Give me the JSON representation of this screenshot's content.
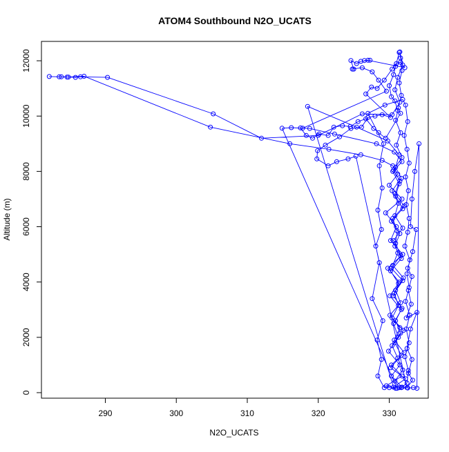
{
  "chart_data": {
    "type": "scatter",
    "title": "ATOM4 Southbound N2O_UCATS",
    "xlabel": "N2O_UCATS",
    "ylabel": "Altitude (m)",
    "xlim": [
      281,
      335.5
    ],
    "ylim": [
      -200,
      12700
    ],
    "xticks": [
      290,
      300,
      310,
      320,
      330
    ],
    "yticks": [
      0,
      2000,
      4000,
      6000,
      8000,
      10000,
      12000
    ],
    "grid": false,
    "legend": "none",
    "marker": "open-circle",
    "connect_points": true,
    "series": [
      {
        "color": "#0000ff",
        "points": [
          [
            331.4,
            180
          ],
          [
            330.8,
            420
          ],
          [
            331.9,
            820
          ],
          [
            331.2,
            1250
          ],
          [
            330.4,
            1700
          ],
          [
            331.6,
            2150
          ],
          [
            330.9,
            2600
          ],
          [
            331.8,
            3050
          ],
          [
            330.6,
            3500
          ],
          [
            331.3,
            3950
          ],
          [
            330.2,
            4400
          ],
          [
            331.7,
            4850
          ],
          [
            330.8,
            5300
          ],
          [
            331.5,
            5750
          ],
          [
            330.3,
            6200
          ],
          [
            331.9,
            6650
          ],
          [
            330.9,
            7100
          ],
          [
            331.4,
            7550
          ],
          [
            330.5,
            8000
          ],
          [
            331.8,
            8350
          ],
          [
            330.7,
            8700
          ],
          [
            328.2,
            9000
          ],
          [
            322.3,
            9350
          ],
          [
            318.8,
            9550
          ],
          [
            316.2,
            9580
          ],
          [
            314.9,
            9560
          ],
          [
            331.1,
            160
          ],
          [
            329.6,
            250
          ],
          [
            331.8,
            600
          ],
          [
            330.3,
            1000
          ],
          [
            332.1,
            1450
          ],
          [
            330.7,
            1900
          ],
          [
            331.5,
            2350
          ],
          [
            330.1,
            2800
          ],
          [
            331.6,
            3250
          ],
          [
            330.9,
            3700
          ],
          [
            332.0,
            4150
          ],
          [
            330.5,
            4600
          ],
          [
            331.2,
            5050
          ],
          [
            330.6,
            5500
          ],
          [
            331.9,
            5950
          ],
          [
            330.8,
            6400
          ],
          [
            331.3,
            6850
          ],
          [
            330.4,
            7300
          ],
          [
            331.7,
            7750
          ],
          [
            330.9,
            8150
          ],
          [
            331.4,
            8600
          ],
          [
            329.8,
            9100
          ],
          [
            325.4,
            9600
          ],
          [
            318.5,
            10350
          ],
          [
            330.6,
            200
          ],
          [
            332.3,
            500
          ],
          [
            330.2,
            900
          ],
          [
            331.7,
            1350
          ],
          [
            330.8,
            1800
          ],
          [
            332.0,
            2250
          ],
          [
            330.4,
            2700
          ],
          [
            331.3,
            3150
          ],
          [
            330.7,
            3600
          ],
          [
            331.9,
            4050
          ],
          [
            330.3,
            4500
          ],
          [
            331.6,
            4950
          ],
          [
            330.9,
            5400
          ],
          [
            331.1,
            5850
          ],
          [
            330.5,
            6300
          ],
          [
            332.1,
            6750
          ],
          [
            330.8,
            7200
          ],
          [
            331.5,
            7650
          ],
          [
            330.6,
            8050
          ],
          [
            331.8,
            8500
          ],
          [
            331.0,
            8950
          ],
          [
            331.6,
            9400
          ],
          [
            330.9,
            9850
          ],
          [
            331.3,
            10300
          ],
          [
            331.7,
            10750
          ],
          [
            331.4,
            11200
          ],
          [
            331.8,
            11650
          ],
          [
            331.6,
            12100
          ],
          [
            331.5,
            12320
          ],
          [
            331.9,
            11850
          ],
          [
            331.2,
            11400
          ],
          [
            330.8,
            10950
          ],
          [
            331.5,
            10500
          ],
          [
            330.4,
            10050
          ],
          [
            326.2,
            10080
          ],
          [
            320.0,
            9300
          ],
          [
            312.0,
            9200
          ],
          [
            305.2,
            10080
          ],
          [
            290.3,
            11400
          ],
          [
            286.5,
            11420
          ],
          [
            285.8,
            11400
          ],
          [
            284.8,
            11410
          ],
          [
            283.8,
            11420
          ],
          [
            282.1,
            11430
          ],
          [
            283.5,
            11420
          ],
          [
            284.6,
            11410
          ],
          [
            287.0,
            11440
          ],
          [
            304.8,
            9600
          ],
          [
            316.0,
            9000
          ],
          [
            321.5,
            8800
          ],
          [
            326.0,
            8600
          ],
          [
            329.0,
            8400
          ],
          [
            330.5,
            8200
          ],
          [
            331.2,
            7900
          ],
          [
            330.0,
            7500
          ],
          [
            331.8,
            7000
          ],
          [
            329.5,
            6500
          ],
          [
            331.0,
            6000
          ],
          [
            330.2,
            5500
          ],
          [
            331.9,
            5000
          ],
          [
            329.8,
            4500
          ],
          [
            331.4,
            4000
          ],
          [
            330.1,
            3500
          ],
          [
            331.7,
            3000
          ],
          [
            330.6,
            2500
          ],
          [
            331.3,
            2000
          ],
          [
            329.9,
            1500
          ],
          [
            331.5,
            1000
          ],
          [
            330.3,
            600
          ],
          [
            331.8,
            200
          ],
          [
            332.5,
            350
          ],
          [
            332.7,
            800
          ],
          [
            332.2,
            1300
          ],
          [
            332.8,
            1800
          ],
          [
            332.4,
            2300
          ],
          [
            332.9,
            2800
          ],
          [
            332.3,
            3300
          ],
          [
            332.8,
            3800
          ],
          [
            332.5,
            4300
          ],
          [
            332.9,
            4800
          ],
          [
            332.2,
            5300
          ],
          [
            332.6,
            5800
          ],
          [
            332.8,
            6300
          ],
          [
            332.4,
            6800
          ],
          [
            332.7,
            7300
          ],
          [
            332.3,
            7800
          ],
          [
            332.8,
            8300
          ],
          [
            332.5,
            8800
          ],
          [
            332.1,
            9300
          ],
          [
            332.6,
            9800
          ],
          [
            332.3,
            10400
          ],
          [
            331.9,
            10600
          ],
          [
            329.4,
            10400
          ],
          [
            327.0,
            10100
          ],
          [
            329.2,
            9000
          ],
          [
            328.6,
            8200
          ],
          [
            329.0,
            7400
          ],
          [
            328.4,
            6600
          ],
          [
            328.9,
            5900
          ],
          [
            328.1,
            5300
          ],
          [
            328.6,
            4700
          ],
          [
            327.6,
            3400
          ],
          [
            329.1,
            2600
          ],
          [
            328.3,
            1900
          ],
          [
            328.9,
            1200
          ],
          [
            328.4,
            600
          ],
          [
            329.3,
            180
          ],
          [
            330.0,
            180
          ],
          [
            330.9,
            160
          ],
          [
            331.7,
            180
          ],
          [
            332.6,
            170
          ],
          [
            333.4,
            180
          ],
          [
            333.9,
            160
          ],
          [
            334.2,
            9000
          ],
          [
            333.6,
            8000
          ],
          [
            333.2,
            7000
          ],
          [
            333.0,
            6000
          ],
          [
            333.8,
            5900
          ],
          [
            333.3,
            5100
          ],
          [
            332.6,
            4500
          ],
          [
            333.2,
            4200
          ],
          [
            332.7,
            3700
          ],
          [
            333.1,
            3200
          ],
          [
            332.4,
            2700
          ],
          [
            333.9,
            2900
          ],
          [
            333.0,
            2300
          ],
          [
            332.5,
            1600
          ],
          [
            333.2,
            1200
          ],
          [
            332.7,
            700
          ],
          [
            333.3,
            450
          ],
          [
            332.5,
            180
          ],
          [
            325.3,
            8550
          ],
          [
            324.2,
            8450
          ],
          [
            322.6,
            8350
          ],
          [
            321.4,
            8200
          ],
          [
            319.8,
            8450
          ],
          [
            319.9,
            8750
          ],
          [
            321.0,
            8950
          ],
          [
            323.0,
            9250
          ],
          [
            324.6,
            9550
          ],
          [
            326.1,
            9600
          ],
          [
            327.0,
            9950
          ],
          [
            328.0,
            10000
          ],
          [
            329.0,
            10050
          ],
          [
            330.2,
            9950
          ],
          [
            326.7,
            10800
          ],
          [
            327.5,
            11050
          ],
          [
            328.3,
            11000
          ],
          [
            329.3,
            11300
          ],
          [
            330.4,
            11700
          ],
          [
            331.0,
            11900
          ],
          [
            331.6,
            11950
          ],
          [
            332.2,
            11750
          ],
          [
            327.0,
            12020
          ],
          [
            326.5,
            12010
          ],
          [
            327.3,
            12020
          ],
          [
            326.0,
            11980
          ],
          [
            325.4,
            11900
          ],
          [
            324.6,
            12010
          ],
          [
            325.0,
            11700
          ],
          [
            324.8,
            11700
          ],
          [
            326.2,
            11750
          ],
          [
            327.6,
            11600
          ],
          [
            328.5,
            11300
          ],
          [
            329.6,
            10900
          ],
          [
            317.8,
            9560
          ],
          [
            317.5,
            9570
          ],
          [
            318.3,
            9300
          ],
          [
            319.2,
            9200
          ],
          [
            320.1,
            9350
          ],
          [
            321.4,
            9300
          ],
          [
            322.2,
            9600
          ],
          [
            323.4,
            9650
          ],
          [
            324.5,
            9620
          ],
          [
            325.6,
            9800
          ],
          [
            326.7,
            9900
          ],
          [
            327.8,
            9550
          ],
          [
            328.5,
            9400
          ],
          [
            329.5,
            9200
          ],
          [
            331.6,
            10100
          ],
          [
            331.2,
            10200
          ],
          [
            330.8,
            10550
          ],
          [
            330.3,
            10700
          ],
          [
            330.0,
            11100
          ],
          [
            330.6,
            11500
          ],
          [
            330.9,
            11800
          ],
          [
            331.4,
            12300
          ]
        ]
      }
    ]
  }
}
